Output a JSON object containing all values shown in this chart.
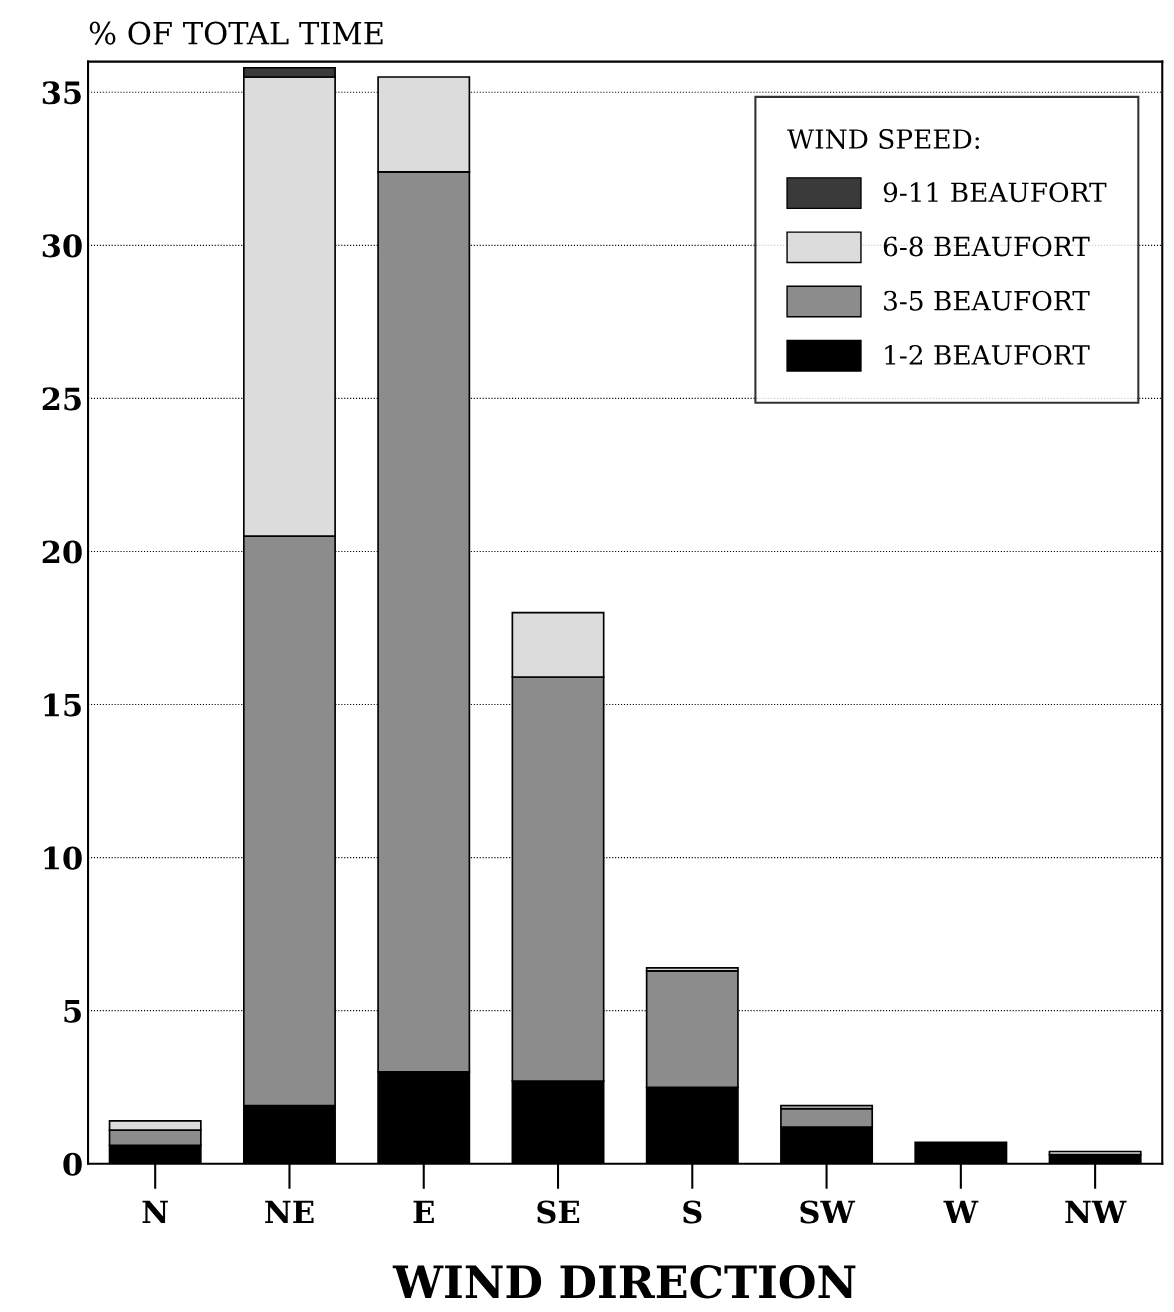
{
  "chart_data": {
    "type": "bar",
    "stacked": true,
    "ylabel": "% OF TOTAL TIME",
    "xlabel": "WIND DIRECTION",
    "legend_title": "WIND SPEED:",
    "legend": "top right",
    "grid": "y",
    "categories": [
      "N",
      "NE",
      "E",
      "SE",
      "S",
      "SW",
      "W",
      "NW"
    ],
    "series": [
      {
        "name": "1-2 BEAUFORT",
        "color": "#000000",
        "values": [
          0.6,
          1.9,
          3.0,
          2.7,
          2.5,
          1.2,
          0.7,
          0.3
        ]
      },
      {
        "name": "3-5 BEAUFORT",
        "color": "#8c8c8c",
        "values": [
          0.5,
          18.6,
          29.4,
          13.2,
          3.8,
          0.6,
          null,
          null
        ]
      },
      {
        "name": "6-8 BEAUFORT",
        "color": "#dcdcdc",
        "values": [
          0.3,
          15.0,
          3.1,
          2.1,
          0.1,
          0.1,
          null,
          0.1
        ]
      },
      {
        "name": "9-11 BEAUFORT",
        "color": "#3a3a3a",
        "values": [
          null,
          0.3,
          null,
          null,
          null,
          null,
          null,
          null
        ]
      }
    ],
    "ylim": [
      0,
      36
    ],
    "yticks": [
      0,
      5,
      10,
      15,
      20,
      25,
      30,
      35
    ]
  }
}
